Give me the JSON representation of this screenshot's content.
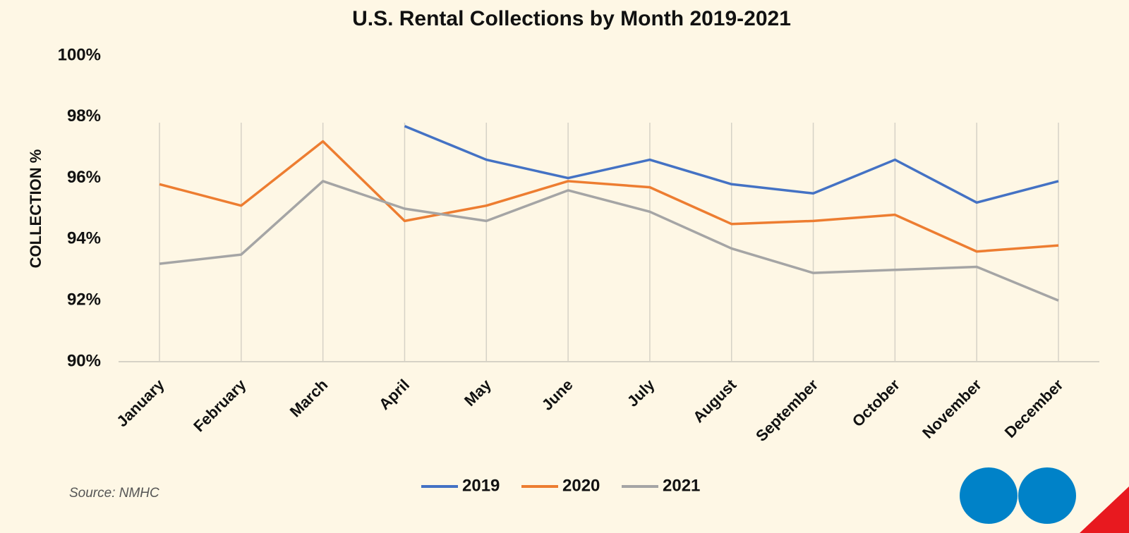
{
  "chart_data": {
    "type": "line",
    "title": "U.S. Rental Collections by Month 2019-2021",
    "y_label": "COLLECTION %",
    "source": "Source: NMHC",
    "categories": [
      "January",
      "February",
      "March",
      "April",
      "May",
      "June",
      "July",
      "August",
      "September",
      "October",
      "November",
      "December"
    ],
    "series": [
      {
        "name": "2019",
        "color": "#4472c4",
        "values": [
          null,
          null,
          null,
          97.7,
          96.6,
          96.0,
          96.6,
          95.8,
          95.5,
          96.6,
          95.2,
          95.9
        ]
      },
      {
        "name": "2020",
        "color": "#ed7d31",
        "values": [
          95.8,
          95.1,
          97.2,
          94.6,
          95.1,
          95.9,
          95.7,
          94.5,
          94.6,
          94.8,
          93.6,
          93.8
        ]
      },
      {
        "name": "2021",
        "color": "#a5a5a5",
        "values": [
          93.2,
          93.5,
          95.9,
          95.0,
          94.6,
          95.6,
          94.9,
          93.7,
          92.9,
          93.0,
          93.1,
          92.0
        ]
      }
    ],
    "ylim": [
      90,
      100
    ],
    "yticks": [
      {
        "value": 90,
        "label": "90%"
      },
      {
        "value": 92,
        "label": "92%"
      },
      {
        "value": 94,
        "label": "94%"
      },
      {
        "value": 96,
        "label": "96%"
      },
      {
        "value": 98,
        "label": "98%"
      },
      {
        "value": 100,
        "label": "100%"
      }
    ],
    "grid": "x",
    "legend": "bottom"
  }
}
